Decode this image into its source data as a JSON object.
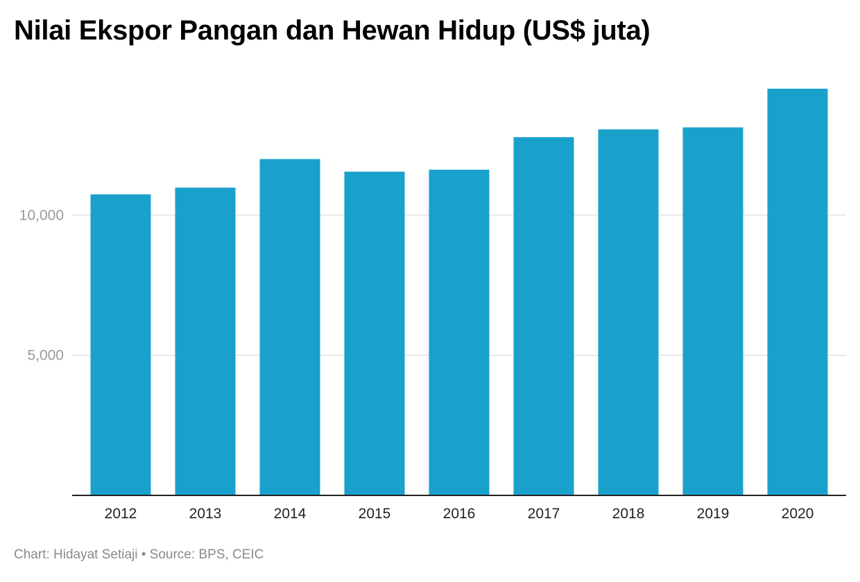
{
  "chart_data": {
    "type": "bar",
    "title": "Nilai Ekspor Pangan dan Hewan Hidup (US$ juta)",
    "categories": [
      "2012",
      "2013",
      "2014",
      "2015",
      "2016",
      "2017",
      "2018",
      "2019",
      "2020"
    ],
    "values": [
      10740,
      10980,
      12000,
      11550,
      11620,
      12780,
      13060,
      13130,
      14510
    ],
    "ylim": [
      0,
      14510
    ],
    "yticks": [
      5000,
      10000
    ],
    "ytick_labels": [
      "5,000",
      "10,000"
    ],
    "xlabel": "",
    "ylabel": "",
    "grid": true,
    "legend": "none",
    "colors": {
      "bar": "#1aa1cb",
      "grid": "#e3e3e3",
      "axis": "#222222",
      "ytick_text": "#9a9a9a",
      "xtick_text": "#222222"
    }
  },
  "footer": {
    "credit": "Chart: Hidayat Setiaji • Source: BPS, CEIC"
  }
}
